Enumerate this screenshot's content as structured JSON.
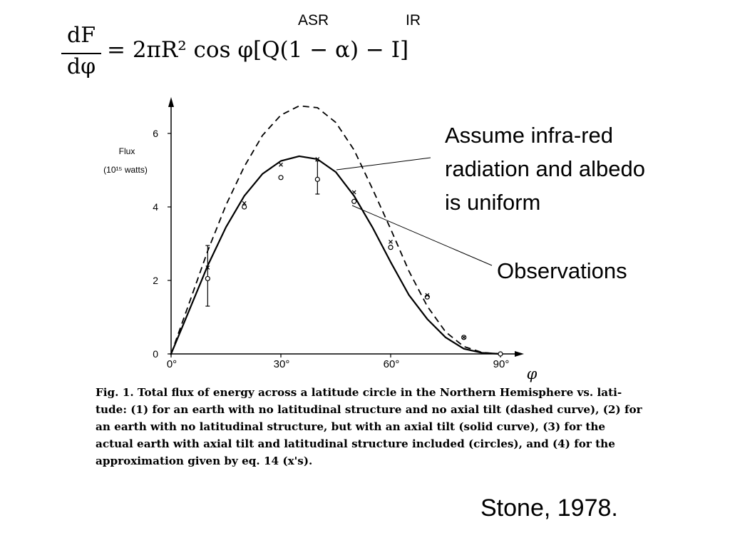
{
  "slide": {
    "asr_label": "ASR",
    "ir_label": "IR",
    "equation": {
      "numerator": "dF",
      "denominator": "dφ",
      "rhs": "= 2πR² cos φ[Q(1 − α) − I]"
    },
    "annotations": {
      "model_lines": [
        "Assume infra-red",
        "radiation and albedo",
        "is uniform"
      ],
      "observations": "Observations"
    },
    "caption_lines": [
      "Fig. 1. Total flux of energy across a latitude circle in the Northern Hemisphere vs. lati-",
      "tude: (1) for an earth with no latitudinal structure and no axial tilt (dashed curve), (2) for",
      "an earth with no latitudinal structure, but with an axial tilt (solid curve), (3) for the",
      "actual earth with axial tilt and latitudinal structure included (circles), and (4) for the",
      "approximation given by eq. 14 (x's)."
    ],
    "source": "Stone, 1978."
  },
  "chart_data": {
    "type": "line",
    "ylabel_lines": [
      "Flux",
      "(10¹⁵ watts)"
    ],
    "xlabel": "φ",
    "xlim": [
      0,
      90
    ],
    "ylim": [
      0,
      7
    ],
    "xticks": [
      0,
      30,
      60,
      90
    ],
    "xtick_labels": [
      "0°",
      "30°",
      "60°",
      "90°"
    ],
    "yticks": [
      0,
      2,
      4,
      6
    ],
    "ytick_labels": [
      "0",
      "2",
      "4",
      "6"
    ],
    "series": [
      {
        "style": "dashed",
        "x": [
          0,
          5,
          10,
          15,
          20,
          25,
          30,
          35,
          40,
          45,
          50,
          55,
          60,
          65,
          70,
          75,
          80,
          85,
          90
        ],
        "y": [
          0,
          1.4,
          2.8,
          4.05,
          5.1,
          5.95,
          6.5,
          6.75,
          6.7,
          6.3,
          5.55,
          4.5,
          3.4,
          2.25,
          1.3,
          0.6,
          0.2,
          0.04,
          0
        ]
      },
      {
        "style": "solid",
        "x": [
          0,
          5,
          10,
          15,
          20,
          25,
          30,
          35,
          40,
          45,
          50,
          55,
          60,
          65,
          70,
          75,
          80,
          85,
          90
        ],
        "y": [
          0,
          1.2,
          2.4,
          3.45,
          4.3,
          4.9,
          5.25,
          5.38,
          5.3,
          4.95,
          4.3,
          3.45,
          2.5,
          1.6,
          0.95,
          0.45,
          0.14,
          0.03,
          0
        ]
      },
      {
        "style": "circles",
        "x": [
          10,
          20,
          30,
          40,
          50,
          60,
          70,
          80,
          90
        ],
        "y": [
          2.05,
          4.0,
          4.8,
          4.75,
          4.15,
          2.9,
          1.55,
          0.45,
          0
        ],
        "err_low": [
          1.3,
          null,
          null,
          4.35,
          null,
          null,
          null,
          null,
          null
        ],
        "err_high": [
          2.95,
          null,
          null,
          5.25,
          null,
          null,
          null,
          null,
          null
        ]
      },
      {
        "style": "x",
        "x": [
          10,
          20,
          30,
          40,
          50,
          60,
          70,
          80
        ],
        "y": [
          2.35,
          4.1,
          5.15,
          5.3,
          4.4,
          3.05,
          1.6,
          0.45
        ]
      }
    ]
  },
  "colors": {
    "ink": "#000000",
    "background": "#ffffff"
  }
}
